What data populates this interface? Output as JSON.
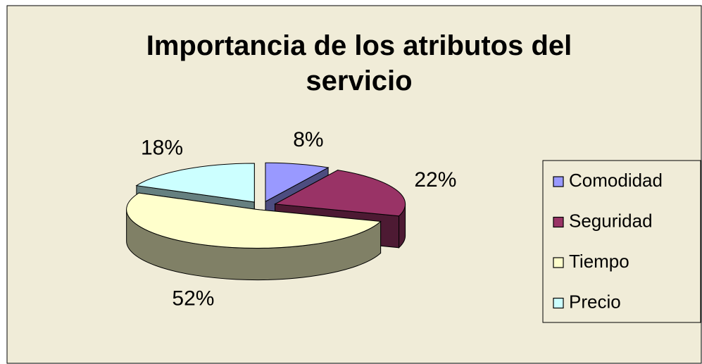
{
  "chart_data": {
    "type": "pie",
    "title": "Importancia de los atributos del servicio",
    "categories": [
      "Comodidad",
      "Seguridad",
      "Tiempo",
      "Precio"
    ],
    "values": [
      8,
      22,
      52,
      18
    ],
    "value_labels": [
      "8%",
      "22%",
      "52%",
      "18%"
    ],
    "colors": [
      "#9999ff",
      "#993366",
      "#ffffcc",
      "#ccffff"
    ],
    "legend": "right"
  }
}
